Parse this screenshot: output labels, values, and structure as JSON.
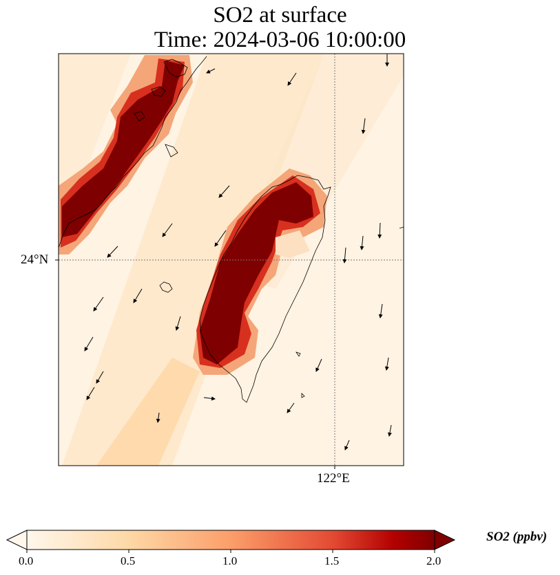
{
  "title": {
    "line1": "SO2 at surface",
    "line2": "Time: 2024-03-06 10:00:00"
  },
  "map": {
    "projection": "PlateCarree",
    "gridlines": {
      "style": "dotted",
      "color": "#888888"
    },
    "lat_tick": "24°N",
    "lon_tick": "122°E",
    "coastline_color": "#000000",
    "wind_vectors": "shown"
  },
  "colorbar": {
    "colormap": "OrRd",
    "range": [
      0.0,
      2.0
    ],
    "extend": "both",
    "ticks": [
      "0.0",
      "0.5",
      "1.0",
      "1.5",
      "2.0"
    ],
    "label": "SO2 (ppbv)"
  }
}
